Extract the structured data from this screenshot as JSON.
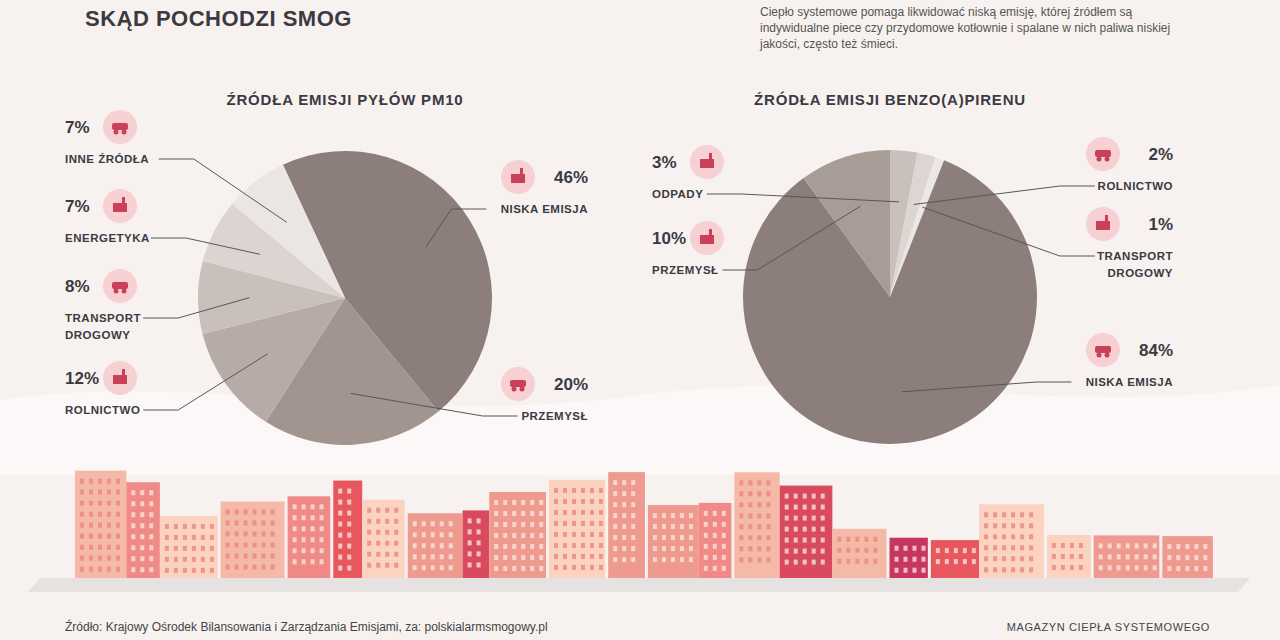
{
  "title": "SKĄD POCHODZI SMOG",
  "subtitle": "Ciepło systemowe pomaga likwidować niską emisję, której źródłem są indywidualne piece czy przydomowe kotłownie i spalane w nich paliwa niskiej jakości, często też śmieci.",
  "source": "Źródło: Krajowy Ośrodek Bilansowania i Zarządzania Emisjami, za: polskialarmsmogowy.pl",
  "publisher": "MAGAZYN CIEPŁA SYSTEMOWEGO",
  "chart_data": [
    {
      "type": "pie",
      "title": "ŹRÓDŁA EMISJI PYŁÓW PM10",
      "categories": [
        "NISKA EMISJA",
        "PRZEMYSŁ",
        "ROLNICTWO",
        "TRANSPORT DROGOWY",
        "ENERGETYKA",
        "INNE ŹRÓDŁA"
      ],
      "values": [
        46,
        20,
        12,
        8,
        7,
        7
      ],
      "value_labels": [
        "46%",
        "20%",
        "12%",
        "8%",
        "7%",
        "7%"
      ],
      "colors": [
        "#8b7e7b",
        "#a2958f",
        "#b6aba6",
        "#c9bfbb",
        "#dcd4d1",
        "#ebe5e3"
      ],
      "data_labels": true
    },
    {
      "type": "pie",
      "title": "ŹRÓDŁA EMISJI BENZO(A)PIRENU",
      "categories": [
        "ODPADY",
        "ROLNICTWO",
        "TRANSPORT DROGOWY",
        "NISKA EMISJA",
        "PRZEMYSŁ"
      ],
      "values": [
        3,
        2,
        1,
        84,
        10
      ],
      "value_labels": [
        "3%",
        "2%",
        "1%",
        "84%",
        "10%"
      ],
      "colors": [
        "#c9c0bc",
        "#ddd5d2",
        "#ece7e5",
        "#8b7e7b",
        "#a89c97"
      ],
      "data_labels": true
    }
  ]
}
